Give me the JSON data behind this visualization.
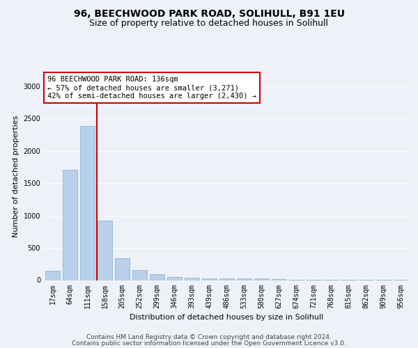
{
  "title1": "96, BEECHWOOD PARK ROAD, SOLIHULL, B91 1EU",
  "title2": "Size of property relative to detached houses in Solihull",
  "xlabel": "Distribution of detached houses by size in Solihull",
  "ylabel": "Number of detached properties",
  "categories": [
    "17sqm",
    "64sqm",
    "111sqm",
    "158sqm",
    "205sqm",
    "252sqm",
    "299sqm",
    "346sqm",
    "393sqm",
    "439sqm",
    "486sqm",
    "533sqm",
    "580sqm",
    "627sqm",
    "674sqm",
    "721sqm",
    "768sqm",
    "815sqm",
    "862sqm",
    "909sqm",
    "956sqm"
  ],
  "values": [
    140,
    1700,
    2380,
    920,
    340,
    160,
    90,
    50,
    35,
    30,
    30,
    30,
    25,
    15,
    10,
    8,
    5,
    5,
    5,
    5,
    5
  ],
  "bar_color": "#b8d0ea",
  "bar_edge_color": "#7aaed4",
  "bar_width": 0.85,
  "vline_color": "#cc0000",
  "annotation_text": "96 BEECHWOOD PARK ROAD: 136sqm\n← 57% of detached houses are smaller (3,271)\n42% of semi-detached houses are larger (2,430) →",
  "annotation_box_color": "white",
  "annotation_box_edge": "#cc0000",
  "ylim": [
    0,
    3200
  ],
  "yticks": [
    0,
    500,
    1000,
    1500,
    2000,
    2500,
    3000
  ],
  "footer1": "Contains HM Land Registry data © Crown copyright and database right 2024.",
  "footer2": "Contains public sector information licensed under the Open Government Licence v3.0.",
  "bg_color": "#eef2f8",
  "grid_color": "white",
  "title_fontsize": 10,
  "subtitle_fontsize": 9,
  "axis_label_fontsize": 8,
  "tick_fontsize": 7,
  "annotation_fontsize": 7.5,
  "footer_fontsize": 6.5
}
